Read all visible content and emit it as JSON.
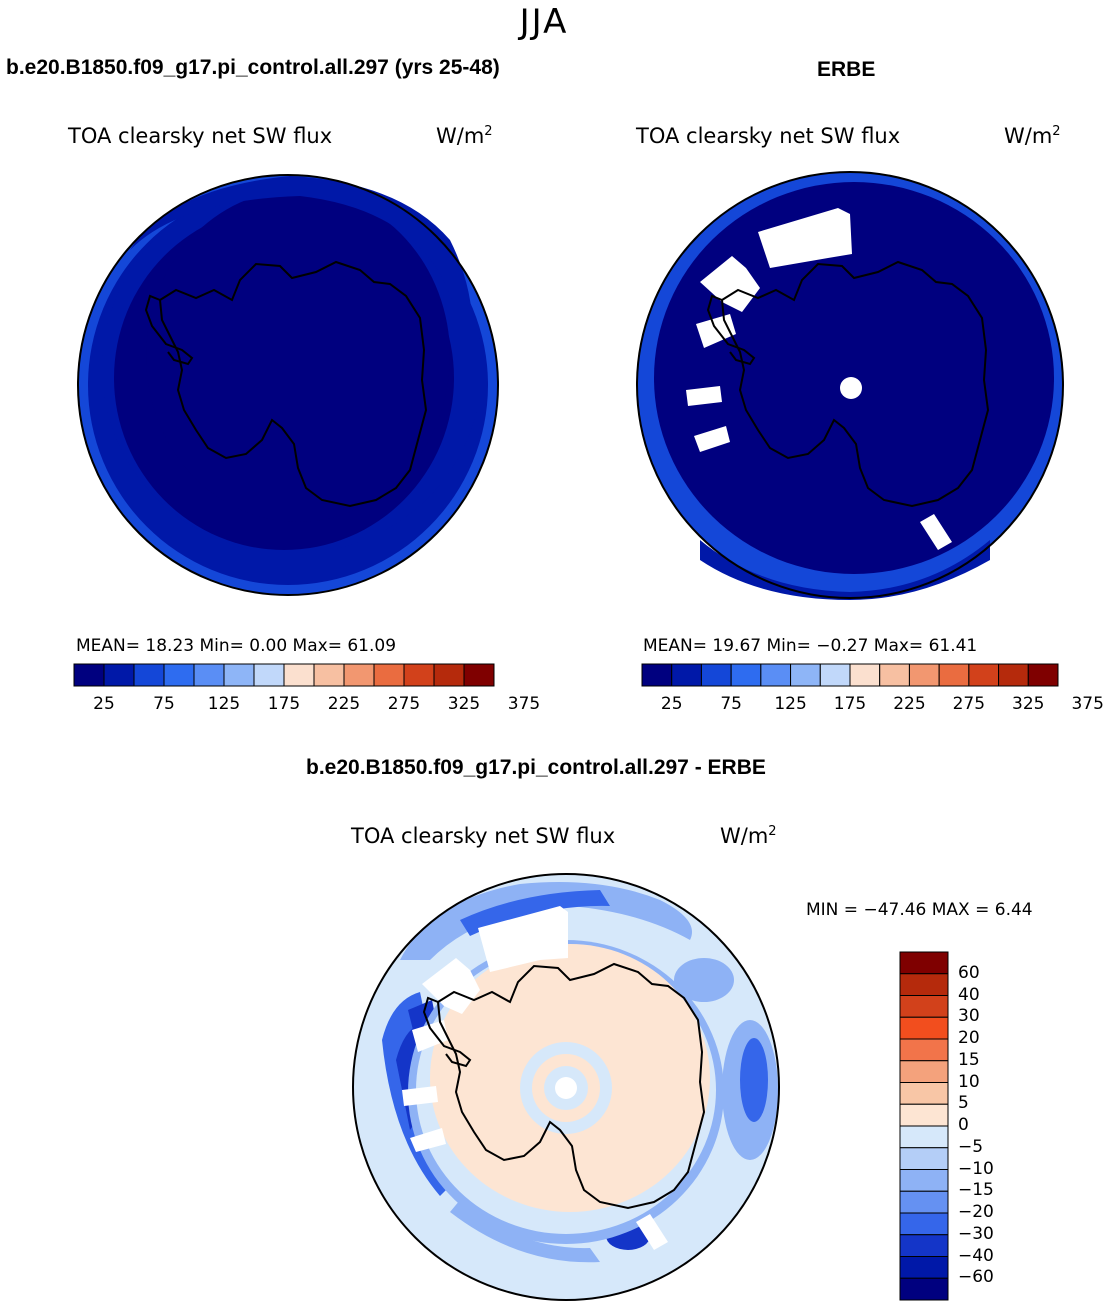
{
  "page": {
    "title": "JJA"
  },
  "panels": [
    {
      "title": "b.e20.B1850.f09_g17.pi_control.all.297 (yrs 25-48)",
      "variable": "TOA clearsky net SW flux",
      "units_base": "W/m",
      "units_exp": "2",
      "stats_text": "MEAN=  18.23  Min=   0.00  Max=  61.09"
    },
    {
      "title": "ERBE",
      "variable": "TOA clearsky net SW flux",
      "units_base": "W/m",
      "units_exp": "2",
      "stats_text": "MEAN=  19.67  Min=  −0.27  Max=  61.41"
    },
    {
      "title": "b.e20.B1850.f09_g17.pi_control.all.297 - ERBE",
      "variable": "TOA clearsky net SW flux",
      "units_base": "W/m",
      "units_exp": "2",
      "stats_text": "MIN = −47.46 MAX =   6.44"
    }
  ],
  "chart_data": [
    {
      "type": "heatmap",
      "projection": "south polar stereographic",
      "title": "b.e20.B1850.f09_g17.pi_control.all.297 (yrs 25-48)",
      "variable": "TOA clearsky net SW flux",
      "units": "W/m^2",
      "mean": 18.23,
      "min": 0.0,
      "max": 61.09,
      "colorbar_levels": [
        25,
        75,
        125,
        175,
        225,
        275,
        325,
        375
      ],
      "colorbar_tick_labels": [
        "25",
        "75",
        "125",
        "175",
        "225",
        "275",
        "325",
        "375"
      ],
      "colorbar_colors": [
        "#00007f",
        "#0018a8",
        "#1447d8",
        "#2e6cf0",
        "#5a8ef5",
        "#8eb5f7",
        "#c1d8fa",
        "#fbe0cf",
        "#f7c0a2",
        "#f29770",
        "#ea6c40",
        "#d2411b",
        "#b52a0c",
        "#7f0000"
      ]
    },
    {
      "type": "heatmap",
      "projection": "south polar stereographic",
      "title": "ERBE",
      "variable": "TOA clearsky net SW flux",
      "units": "W/m^2",
      "mean": 19.67,
      "min": -0.27,
      "max": 61.41,
      "colorbar_levels": [
        25,
        75,
        125,
        175,
        225,
        275,
        325,
        375
      ],
      "colorbar_tick_labels": [
        "25",
        "75",
        "125",
        "175",
        "225",
        "275",
        "325",
        "375"
      ],
      "colorbar_colors": [
        "#00007f",
        "#0018a8",
        "#1447d8",
        "#2e6cf0",
        "#5a8ef5",
        "#8eb5f7",
        "#c1d8fa",
        "#fbe0cf",
        "#f7c0a2",
        "#f29770",
        "#ea6c40",
        "#d2411b",
        "#b52a0c",
        "#7f0000"
      ]
    },
    {
      "type": "heatmap",
      "projection": "south polar stereographic",
      "title": "b.e20.B1850.f09_g17.pi_control.all.297 - ERBE",
      "variable": "TOA clearsky net SW flux",
      "units": "W/m^2",
      "min": -47.46,
      "max": 6.44,
      "colorbar_levels": [
        -60,
        -40,
        -30,
        -20,
        -15,
        -10,
        -5,
        0,
        5,
        10,
        15,
        20,
        30,
        40,
        60
      ],
      "colorbar_tick_labels": [
        "60",
        "40",
        "30",
        "20",
        "15",
        "10",
        "5",
        "0",
        "−5",
        "−10",
        "−15",
        "−20",
        "−30",
        "−40",
        "−60"
      ],
      "colorbar_colors": [
        "#7f0000",
        "#b52a0c",
        "#d2411b",
        "#f24e1e",
        "#f2744a",
        "#f4a27c",
        "#f8c6a6",
        "#fde5d3",
        "#d6e8fa",
        "#b4cef7",
        "#8eb2f5",
        "#6591f2",
        "#3566ea",
        "#1435c8",
        "#0018a8",
        "#00007f"
      ]
    }
  ]
}
